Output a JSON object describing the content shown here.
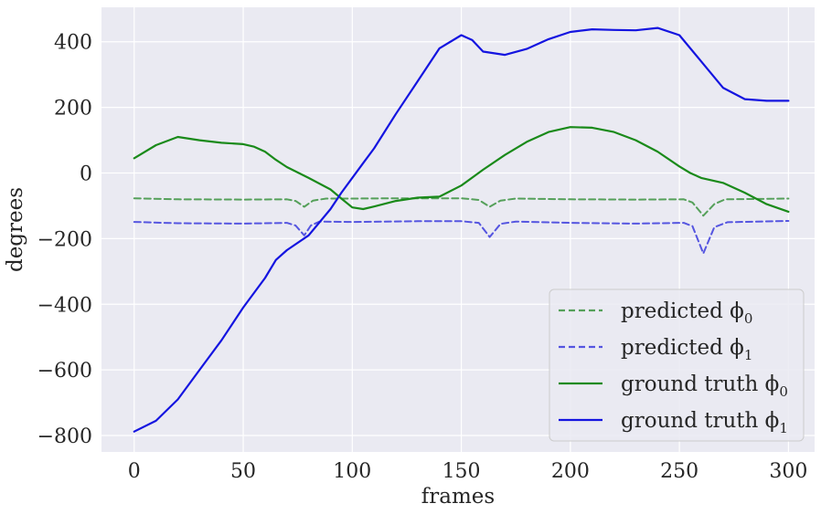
{
  "chart_data": {
    "type": "line",
    "xlabel": "frames",
    "ylabel": "degrees",
    "xlim": [
      -15,
      312
    ],
    "ylim": [
      -850,
      505
    ],
    "xticks": [
      0,
      50,
      100,
      150,
      200,
      250,
      300
    ],
    "xtick_labels": [
      "0",
      "50",
      "100",
      "150",
      "200",
      "250",
      "300"
    ],
    "yticks": [
      -800,
      -600,
      -400,
      -200,
      0,
      200,
      400
    ],
    "ytick_labels": [
      "−800",
      "−600",
      "−400",
      "−200",
      "0",
      "200",
      "400"
    ],
    "grid": true,
    "legend_position": "lower-right",
    "series": [
      {
        "name": "predicted ϕ",
        "subscript": "0",
        "color": "#55a05a",
        "style": "dashed",
        "points": [
          [
            0,
            -77
          ],
          [
            20,
            -80
          ],
          [
            50,
            -81
          ],
          [
            70,
            -80
          ],
          [
            74,
            -85
          ],
          [
            78,
            -103
          ],
          [
            82,
            -84
          ],
          [
            88,
            -78
          ],
          [
            100,
            -78
          ],
          [
            120,
            -77
          ],
          [
            150,
            -77
          ],
          [
            158,
            -82
          ],
          [
            163,
            -103
          ],
          [
            168,
            -84
          ],
          [
            175,
            -78
          ],
          [
            200,
            -80
          ],
          [
            230,
            -81
          ],
          [
            252,
            -80
          ],
          [
            256,
            -90
          ],
          [
            261,
            -130
          ],
          [
            266,
            -95
          ],
          [
            271,
            -80
          ],
          [
            300,
            -78
          ]
        ]
      },
      {
        "name": "predicted ϕ",
        "subscript": "1",
        "color": "#5555e0",
        "style": "dashed",
        "points": [
          [
            0,
            -149
          ],
          [
            20,
            -153
          ],
          [
            50,
            -154
          ],
          [
            70,
            -152
          ],
          [
            74,
            -160
          ],
          [
            78,
            -190
          ],
          [
            81,
            -160
          ],
          [
            85,
            -148
          ],
          [
            100,
            -149
          ],
          [
            130,
            -147
          ],
          [
            150,
            -147
          ],
          [
            158,
            -152
          ],
          [
            163,
            -195
          ],
          [
            168,
            -155
          ],
          [
            175,
            -148
          ],
          [
            200,
            -152
          ],
          [
            230,
            -154
          ],
          [
            252,
            -152
          ],
          [
            256,
            -162
          ],
          [
            261,
            -245
          ],
          [
            266,
            -165
          ],
          [
            272,
            -150
          ],
          [
            300,
            -146
          ]
        ]
      },
      {
        "name": "ground truth ϕ",
        "subscript": "0",
        "color": "#1a8a1a",
        "style": "solid",
        "points": [
          [
            0,
            45
          ],
          [
            10,
            85
          ],
          [
            20,
            110
          ],
          [
            30,
            100
          ],
          [
            40,
            92
          ],
          [
            50,
            88
          ],
          [
            55,
            80
          ],
          [
            60,
            65
          ],
          [
            65,
            40
          ],
          [
            70,
            18
          ],
          [
            80,
            -15
          ],
          [
            90,
            -50
          ],
          [
            95,
            -78
          ],
          [
            100,
            -105
          ],
          [
            105,
            -110
          ],
          [
            110,
            -102
          ],
          [
            120,
            -85
          ],
          [
            130,
            -75
          ],
          [
            140,
            -72
          ],
          [
            150,
            -38
          ],
          [
            160,
            10
          ],
          [
            170,
            55
          ],
          [
            180,
            95
          ],
          [
            190,
            125
          ],
          [
            200,
            140
          ],
          [
            210,
            138
          ],
          [
            220,
            125
          ],
          [
            230,
            100
          ],
          [
            240,
            65
          ],
          [
            250,
            20
          ],
          [
            255,
            0
          ],
          [
            260,
            -15
          ],
          [
            270,
            -30
          ],
          [
            280,
            -60
          ],
          [
            290,
            -95
          ],
          [
            300,
            -118
          ]
        ]
      },
      {
        "name": "ground truth ϕ",
        "subscript": "1",
        "color": "#1414e0",
        "style": "solid",
        "points": [
          [
            0,
            -788
          ],
          [
            10,
            -755
          ],
          [
            20,
            -690
          ],
          [
            30,
            -600
          ],
          [
            40,
            -510
          ],
          [
            50,
            -410
          ],
          [
            60,
            -320
          ],
          [
            65,
            -265
          ],
          [
            70,
            -235
          ],
          [
            80,
            -190
          ],
          [
            90,
            -110
          ],
          [
            95,
            -60
          ],
          [
            105,
            30
          ],
          [
            110,
            75
          ],
          [
            120,
            180
          ],
          [
            130,
            280
          ],
          [
            140,
            380
          ],
          [
            150,
            420
          ],
          [
            155,
            405
          ],
          [
            160,
            370
          ],
          [
            170,
            360
          ],
          [
            180,
            378
          ],
          [
            190,
            408
          ],
          [
            200,
            430
          ],
          [
            210,
            438
          ],
          [
            220,
            436
          ],
          [
            230,
            435
          ],
          [
            240,
            442
          ],
          [
            250,
            420
          ],
          [
            260,
            340
          ],
          [
            270,
            260
          ],
          [
            280,
            225
          ],
          [
            290,
            220
          ],
          [
            300,
            220
          ]
        ]
      }
    ]
  }
}
